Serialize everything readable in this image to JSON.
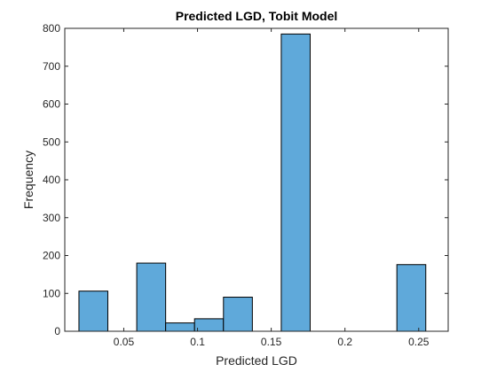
{
  "chart_data": {
    "type": "bar",
    "title": "Predicted LGD, Tobit Model",
    "xlabel": "Predicted LGD",
    "ylabel": "Frequency",
    "xlim": [
      0.01,
      0.27
    ],
    "ylim": [
      0,
      800
    ],
    "xticks": [
      0.05,
      0.1,
      0.15,
      0.2,
      0.25
    ],
    "xtick_labels": [
      "0.05",
      "0.1",
      "0.15",
      "0.2",
      "0.25"
    ],
    "yticks": [
      0,
      100,
      200,
      300,
      400,
      500,
      600,
      700,
      800
    ],
    "ytick_labels": [
      "0",
      "100",
      "200",
      "300",
      "400",
      "500",
      "600",
      "700",
      "800"
    ],
    "bin_edges": [
      0.0196,
      0.0392,
      0.0588,
      0.0784,
      0.098,
      0.1176,
      0.1372,
      0.1568,
      0.1764,
      0.196,
      0.2156,
      0.2352,
      0.2548
    ],
    "bins": [
      {
        "from": 0.0196,
        "to": 0.0392,
        "count": 106
      },
      {
        "from": 0.0588,
        "to": 0.0784,
        "count": 180
      },
      {
        "from": 0.0784,
        "to": 0.098,
        "count": 22
      },
      {
        "from": 0.098,
        "to": 0.1176,
        "count": 33
      },
      {
        "from": 0.1176,
        "to": 0.1372,
        "count": 90
      },
      {
        "from": 0.1568,
        "to": 0.1764,
        "count": 785
      },
      {
        "from": 0.2352,
        "to": 0.2548,
        "count": 176
      }
    ],
    "grid": false,
    "bar_color": "#5fa9da",
    "edge_color": "#000000"
  }
}
